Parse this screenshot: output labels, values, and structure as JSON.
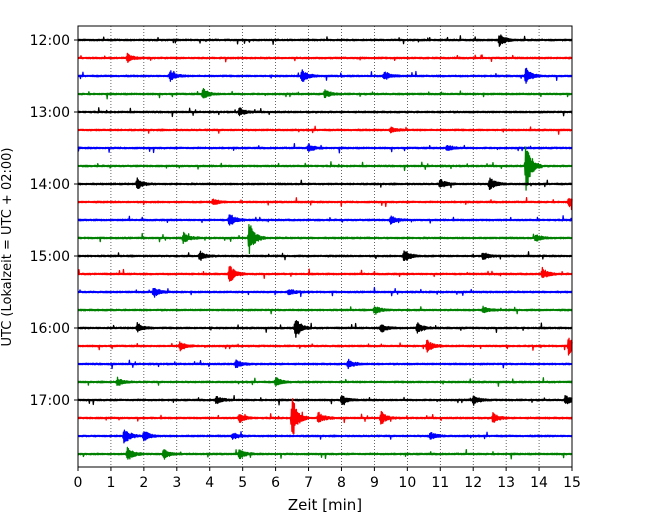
{
  "chart_data": {
    "type": "line",
    "subtype": "helicorder",
    "title": "",
    "xlabel": "Zeit  [min]",
    "ylabel": "UTC (Lokalzeit = UTC + 02:00)",
    "xlim": [
      0,
      15
    ],
    "x_ticks": [
      0,
      1,
      2,
      3,
      4,
      5,
      6,
      7,
      8,
      9,
      10,
      11,
      12,
      13,
      14,
      15
    ],
    "x_tick_labels": [
      "0",
      "1",
      "2",
      "3",
      "4",
      "5",
      "6",
      "7",
      "8",
      "9",
      "10",
      "11",
      "12",
      "13",
      "14",
      "15"
    ],
    "x_grid": true,
    "y_grid": false,
    "trace_minutes": 15,
    "trace_colors": [
      "#000000",
      "#ff0000",
      "#0000ff",
      "#008000"
    ],
    "hour_labels": [
      "12:00",
      "13:00",
      "14:00",
      "15:00",
      "16:00",
      "17:00"
    ],
    "traces": [
      {
        "start": "12:00",
        "color": "#000000",
        "events": [
          {
            "x": 12.8,
            "amp": 0.4
          }
        ]
      },
      {
        "start": "12:15",
        "color": "#ff0000",
        "events": [
          {
            "x": 1.5,
            "amp": 0.25
          }
        ]
      },
      {
        "start": "12:30",
        "color": "#0000ff",
        "events": [
          {
            "x": 2.8,
            "amp": 0.35
          },
          {
            "x": 6.8,
            "amp": 0.4
          },
          {
            "x": 9.3,
            "amp": 0.3
          },
          {
            "x": 13.6,
            "amp": 0.5
          }
        ]
      },
      {
        "start": "12:45",
        "color": "#008000",
        "events": [
          {
            "x": 3.8,
            "amp": 0.35
          },
          {
            "x": 7.5,
            "amp": 0.25
          }
        ]
      },
      {
        "start": "13:00",
        "color": "#000000",
        "events": [
          {
            "x": 4.9,
            "amp": 0.25
          }
        ]
      },
      {
        "start": "13:15",
        "color": "#ff0000",
        "events": [
          {
            "x": 9.5,
            "amp": 0.2
          }
        ]
      },
      {
        "start": "13:30",
        "color": "#0000ff",
        "events": [
          {
            "x": 7.0,
            "amp": 0.25
          },
          {
            "x": 11.2,
            "amp": 0.2
          }
        ]
      },
      {
        "start": "13:45",
        "color": "#008000",
        "events": [
          {
            "x": 13.6,
            "amp": 1.6
          }
        ]
      },
      {
        "start": "14:00",
        "color": "#000000",
        "events": [
          {
            "x": 1.8,
            "amp": 0.35
          },
          {
            "x": 11.0,
            "amp": 0.3
          },
          {
            "x": 12.5,
            "amp": 0.45
          }
        ]
      },
      {
        "start": "14:15",
        "color": "#ff0000",
        "events": [
          {
            "x": 4.1,
            "amp": 0.2
          },
          {
            "x": 14.9,
            "amp": 0.3
          }
        ]
      },
      {
        "start": "14:30",
        "color": "#0000ff",
        "events": [
          {
            "x": 4.6,
            "amp": 0.45
          },
          {
            "x": 9.5,
            "amp": 0.25
          }
        ]
      },
      {
        "start": "14:45",
        "color": "#008000",
        "events": [
          {
            "x": 3.2,
            "amp": 0.35
          },
          {
            "x": 5.2,
            "amp": 1.0
          },
          {
            "x": 13.9,
            "amp": 0.25
          }
        ]
      },
      {
        "start": "15:00",
        "color": "#000000",
        "events": [
          {
            "x": 3.7,
            "amp": 0.3
          },
          {
            "x": 9.9,
            "amp": 0.45
          },
          {
            "x": 12.3,
            "amp": 0.25
          }
        ]
      },
      {
        "start": "15:15",
        "color": "#ff0000",
        "events": [
          {
            "x": 4.6,
            "amp": 0.55
          },
          {
            "x": 14.1,
            "amp": 0.35
          }
        ]
      },
      {
        "start": "15:30",
        "color": "#0000ff",
        "events": [
          {
            "x": 2.3,
            "amp": 0.35
          },
          {
            "x": 6.4,
            "amp": 0.2
          }
        ]
      },
      {
        "start": "15:45",
        "color": "#008000",
        "events": [
          {
            "x": 9.0,
            "amp": 0.3
          },
          {
            "x": 12.3,
            "amp": 0.2
          }
        ]
      },
      {
        "start": "16:00",
        "color": "#000000",
        "events": [
          {
            "x": 1.8,
            "amp": 0.3
          },
          {
            "x": 6.6,
            "amp": 0.7
          },
          {
            "x": 9.2,
            "amp": 0.3
          },
          {
            "x": 10.3,
            "amp": 0.35
          }
        ]
      },
      {
        "start": "16:15",
        "color": "#ff0000",
        "events": [
          {
            "x": 3.1,
            "amp": 0.3
          },
          {
            "x": 10.6,
            "amp": 0.4
          },
          {
            "x": 14.9,
            "amp": 0.65
          }
        ]
      },
      {
        "start": "16:30",
        "color": "#0000ff",
        "events": [
          {
            "x": 4.8,
            "amp": 0.25
          },
          {
            "x": 8.2,
            "amp": 0.3
          }
        ]
      },
      {
        "start": "16:45",
        "color": "#008000",
        "events": [
          {
            "x": 1.2,
            "amp": 0.25
          },
          {
            "x": 6.0,
            "amp": 0.3
          }
        ]
      },
      {
        "start": "17:00",
        "color": "#000000",
        "events": [
          {
            "x": 4.2,
            "amp": 0.25
          },
          {
            "x": 8.0,
            "amp": 0.3
          },
          {
            "x": 12.0,
            "amp": 0.3
          },
          {
            "x": 14.8,
            "amp": 0.3
          }
        ]
      },
      {
        "start": "17:15",
        "color": "#ff0000",
        "events": [
          {
            "x": 4.9,
            "amp": 0.3
          },
          {
            "x": 6.5,
            "amp": 1.4
          },
          {
            "x": 7.3,
            "amp": 0.35
          },
          {
            "x": 9.2,
            "amp": 0.4
          },
          {
            "x": 12.6,
            "amp": 0.3
          }
        ]
      },
      {
        "start": "17:30",
        "color": "#0000ff",
        "events": [
          {
            "x": 1.4,
            "amp": 0.55
          },
          {
            "x": 2.0,
            "amp": 0.35
          },
          {
            "x": 4.7,
            "amp": 0.2
          },
          {
            "x": 10.7,
            "amp": 0.25
          }
        ]
      },
      {
        "start": "17:45",
        "color": "#008000",
        "events": [
          {
            "x": 1.5,
            "amp": 0.45
          },
          {
            "x": 2.6,
            "amp": 0.35
          },
          {
            "x": 4.9,
            "amp": 0.3
          }
        ]
      }
    ]
  }
}
